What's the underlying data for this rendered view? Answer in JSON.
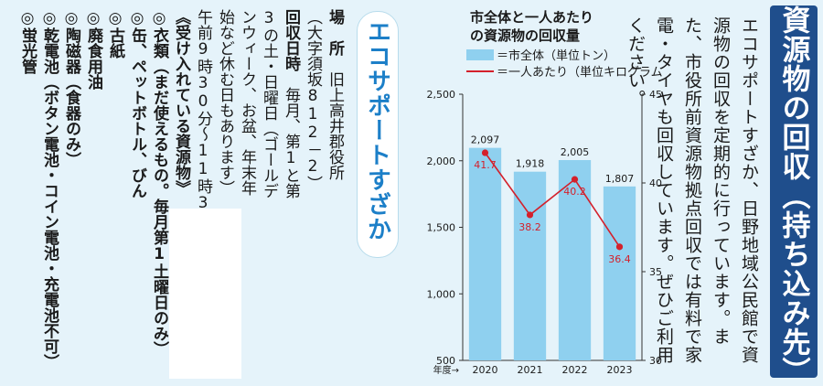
{
  "title": "資源物の回収（持ち込み先）",
  "intro": "エコサポートすざか、日野地域公民館で資源物の回収を定期的に行っています。また、市役所前資源物拠点回収では有料で家電・タイヤも回収しています。ぜひご利用ください。",
  "eco_label": "エコサポートすざか",
  "details": {
    "place_label": "場　所",
    "place_value": "旧上高井郡役所",
    "place_addr": "（大字須坂812－2）",
    "date_label": "回収日時",
    "date_value_1": "毎月、第1と第",
    "date_value_2": "3の土・日曜日（ゴールデ",
    "date_value_3": "ンウィーク、お盆、年末年",
    "date_value_4": "始など休む日もあります）",
    "time_value": "午前9時30分～11時30分",
    "accepted_header": "《受け入れている資源物》",
    "items": [
      "◎衣類（まだ使えるもの。毎月第1土曜日のみ）",
      "◎缶、ペットボトル、びん",
      "◎古紙",
      "◎廃食用油",
      "◎陶磁器（食器のみ）",
      "◎乾電池（ボタン電池・コイン電池・充電池不可）",
      "◎蛍光管"
    ]
  },
  "chart_data": {
    "type": "bar",
    "title": "市全体と一人あたりの資源物の回収量",
    "legend": [
      {
        "label": "＝市全体（単位トン）",
        "color": "#8fd0ef"
      },
      {
        "label": "＝一人あたり（単位キログラム）",
        "color": "#d4202b"
      }
    ],
    "xlabel": "年度→",
    "categories": [
      "2020",
      "2021",
      "2022",
      "2023"
    ],
    "series": [
      {
        "name": "＝市全体（単位トン）",
        "type": "bar",
        "axis": "left",
        "values": [
          2097,
          1918,
          2005,
          1807
        ],
        "labels": [
          "2,097",
          "1,918",
          "2,005",
          "1,807"
        ]
      },
      {
        "name": "＝一人あたり（単位キログラム）",
        "type": "line",
        "axis": "right",
        "values": [
          41.7,
          38.2,
          40.2,
          36.4
        ],
        "labels": [
          "41.7",
          "38.2",
          "40.2",
          "36.4"
        ]
      }
    ],
    "ylim_left": [
      500,
      2500
    ],
    "yticks_left": [
      "500",
      "1,000",
      "1,500",
      "2,000",
      "2,500"
    ],
    "ylim_right": [
      30,
      45
    ],
    "yticks_right": [
      "30",
      "35",
      "40",
      "45"
    ]
  }
}
